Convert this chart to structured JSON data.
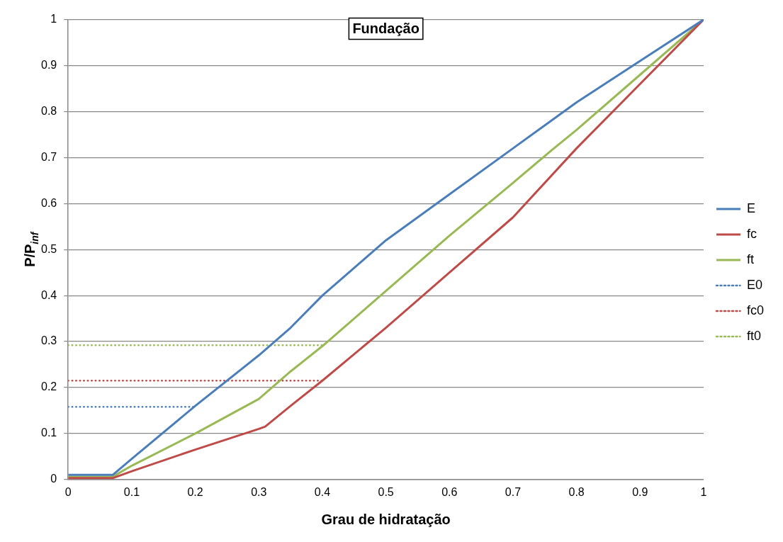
{
  "chart_data": {
    "type": "line",
    "title": "Fundação",
    "xlabel": "Grau de hidratação",
    "ylabel": "P/P$_{inf}$",
    "xlim": [
      0,
      1
    ],
    "ylim": [
      0,
      1
    ],
    "xticks": [
      0,
      0.1,
      0.2,
      0.3,
      0.4,
      0.5,
      0.6,
      0.7,
      0.8,
      0.9,
      1
    ],
    "yticks": [
      0,
      0.1,
      0.2,
      0.3,
      0.4,
      0.5,
      0.6,
      0.7,
      0.8,
      0.9,
      1
    ],
    "grid": "y",
    "legend": "right",
    "marker": "none",
    "series": [
      {
        "name": "E",
        "color": "#4a7ebb",
        "line_style": "solid",
        "x": [
          0,
          0.07,
          0.1,
          0.2,
          0.3,
          0.35,
          0.4,
          0.5,
          0.6,
          0.7,
          0.8,
          0.9,
          1
        ],
        "values": [
          0.01,
          0.01,
          0.045,
          0.16,
          0.27,
          0.33,
          0.4,
          0.52,
          0.62,
          0.72,
          0.82,
          0.91,
          1
        ]
      },
      {
        "name": "fc",
        "color": "#be4b48",
        "line_style": "solid",
        "x": [
          0,
          0.07,
          0.1,
          0.2,
          0.3,
          0.31,
          0.35,
          0.4,
          0.5,
          0.6,
          0.7,
          0.8,
          0.9,
          1
        ],
        "values": [
          0.003,
          0.003,
          0.018,
          0.065,
          0.11,
          0.115,
          0.16,
          0.215,
          0.33,
          0.45,
          0.57,
          0.72,
          0.86,
          1
        ]
      },
      {
        "name": "ft",
        "color": "#98b954",
        "line_style": "solid",
        "x": [
          0,
          0.07,
          0.1,
          0.2,
          0.3,
          0.35,
          0.4,
          0.5,
          0.6,
          0.7,
          0.76,
          0.8,
          0.9,
          1
        ],
        "values": [
          0.006,
          0.006,
          0.03,
          0.1,
          0.175,
          0.235,
          0.29,
          0.41,
          0.53,
          0.645,
          0.715,
          0.76,
          0.88,
          1
        ]
      },
      {
        "name": "E0",
        "color": "#4a7ebb",
        "line_style": "dotted",
        "x": [
          0,
          0.2
        ],
        "values": [
          0.158,
          0.158
        ]
      },
      {
        "name": "fc0",
        "color": "#be4b48",
        "line_style": "dotted",
        "x": [
          0,
          0.4
        ],
        "values": [
          0.215,
          0.215
        ]
      },
      {
        "name": "ft0",
        "color": "#98b954",
        "line_style": "dotted",
        "x": [
          0,
          0.4
        ],
        "values": [
          0.292,
          0.292
        ]
      }
    ]
  }
}
